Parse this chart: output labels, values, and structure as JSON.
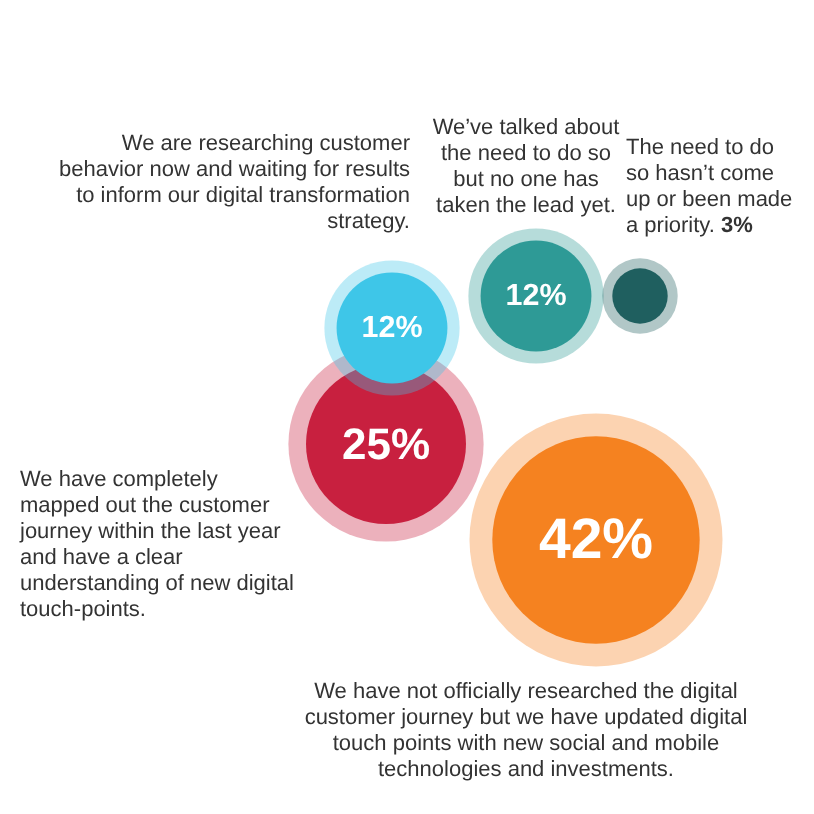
{
  "chart_data": {
    "type": "other",
    "categories": [
      "We have not officially researched the digital customer journey but we have updated digital touch points with new social and mobile technologies and investments.",
      "We have completely mapped out the customer journey within the last year and have a clear understanding of new digital touch-points.",
      "We are researching customer behavior now and waiting for results to inform our digital transformation strategy.",
      "We’ve talked about the need to do so but no one has taken the lead yet.",
      "The need to do so hasn’t come up or been made a priority."
    ],
    "values": [
      42,
      25,
      12,
      12,
      3
    ],
    "value_labels": [
      "42%",
      "25%",
      "12%",
      "12%",
      "3%"
    ],
    "colors": [
      "#f58220",
      "#c8203f",
      "#3ec6e8",
      "#2e9a96",
      "#1f5f5f"
    ]
  }
}
